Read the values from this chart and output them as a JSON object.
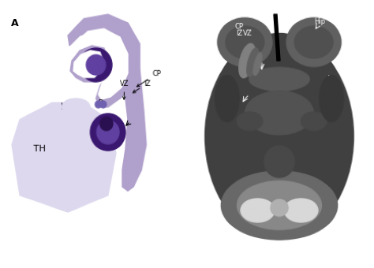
{
  "figsize": [
    4.74,
    3.4
  ],
  "dpi": 100,
  "background_color": "#ffffff"
}
